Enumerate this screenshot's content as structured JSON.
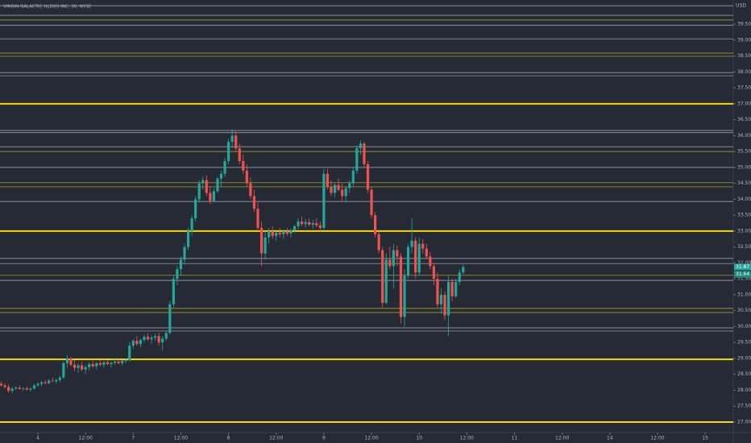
{
  "chart_data": {
    "type": "candlestick",
    "title": "VIRGIN GALACTIC HLDGS INC, 30, NYSE",
    "currency": "USD",
    "up_color": "#26a69a",
    "down_color": "#ef5350",
    "ylim": [
      26.67,
      40.26
    ],
    "yticks": [
      {
        "value": 27,
        "label": "27.00"
      },
      {
        "value": 27.5,
        "label": "27.50"
      },
      {
        "value": 28,
        "label": "28.00"
      },
      {
        "value": 28.5,
        "label": "28.50"
      },
      {
        "value": 29,
        "label": "29.00"
      },
      {
        "value": 29.5,
        "label": "29.50"
      },
      {
        "value": 30,
        "label": "30.00"
      },
      {
        "value": 30.5,
        "label": "30.50"
      },
      {
        "value": 31,
        "label": "31.00"
      },
      {
        "value": 31.5,
        "label": "31.50"
      },
      {
        "value": 32,
        "label": "32.00"
      },
      {
        "value": 32.5,
        "label": "32.50"
      },
      {
        "value": 33,
        "label": "33.00"
      },
      {
        "value": 33.5,
        "label": "33.50"
      },
      {
        "value": 34,
        "label": "34.00"
      },
      {
        "value": 34.5,
        "label": "34.50"
      },
      {
        "value": 35,
        "label": "35.00"
      },
      {
        "value": 35.5,
        "label": "35.50"
      },
      {
        "value": 36,
        "label": "36.00"
      },
      {
        "value": 36.5,
        "label": "36.50"
      },
      {
        "value": 37,
        "label": "37.00"
      },
      {
        "value": 37.5,
        "label": "37.50"
      },
      {
        "value": 38,
        "label": "38.00"
      },
      {
        "value": 38.5,
        "label": "38.50"
      },
      {
        "value": 39,
        "label": "39.00"
      },
      {
        "value": 39.5,
        "label": "39.50"
      }
    ],
    "xlim": [
      -0.33,
      199.67
    ],
    "xticks": [
      {
        "value": 10,
        "label": "4"
      },
      {
        "value": 23,
        "label": "12:00"
      },
      {
        "value": 36,
        "label": "7"
      },
      {
        "value": 49,
        "label": "12:00"
      },
      {
        "value": 62,
        "label": "8"
      },
      {
        "value": 75,
        "label": "12:00"
      },
      {
        "value": 88,
        "label": "9"
      },
      {
        "value": 101,
        "label": "12:00"
      },
      {
        "value": 114,
        "label": "10"
      },
      {
        "value": 127,
        "label": "12:00"
      },
      {
        "value": 140,
        "label": "11"
      },
      {
        "value": 153,
        "label": "12:00"
      },
      {
        "value": 166,
        "label": "14"
      },
      {
        "value": 179,
        "label": "12:00"
      },
      {
        "value": 192,
        "label": "15"
      }
    ],
    "levels": [
      {
        "value": 40.08,
        "color": "#d1d4dc",
        "style": "thin"
      },
      {
        "value": 39.78,
        "color": "#d1d4dc",
        "style": "thin"
      },
      {
        "value": 39.63,
        "color": "#e6d22e",
        "style": "thin"
      },
      {
        "value": 39.47,
        "color": "#d1d4dc",
        "style": "thin"
      },
      {
        "value": 39.04,
        "color": "#d1d4dc",
        "style": "thin"
      },
      {
        "value": 38.59,
        "color": "#e6d22e",
        "style": "thin"
      },
      {
        "value": 38.49,
        "color": "#e6d22e",
        "style": "thin"
      },
      {
        "value": 37.98,
        "color": "#d1d4dc",
        "style": "thin"
      },
      {
        "value": 37.88,
        "color": "#d1d4dc",
        "style": "thin"
      },
      {
        "value": 37.0,
        "color": "#f5d90a",
        "style": "thick"
      },
      {
        "value": 36.16,
        "color": "#d1d4dc",
        "style": "thin"
      },
      {
        "value": 36.09,
        "color": "#d1d4dc",
        "style": "thin"
      },
      {
        "value": 35.65,
        "color": "#d1d4dc",
        "style": "thin"
      },
      {
        "value": 35.5,
        "color": "#e6d22e",
        "style": "thin"
      },
      {
        "value": 35.0,
        "color": "#d1d4dc",
        "style": "thin"
      },
      {
        "value": 34.52,
        "color": "#e6d22e",
        "style": "thin"
      },
      {
        "value": 34.39,
        "color": "#e6d22e",
        "style": "thin"
      },
      {
        "value": 33.93,
        "color": "#d1d4dc",
        "style": "thin"
      },
      {
        "value": 33.0,
        "color": "#f5d90a",
        "style": "thick"
      },
      {
        "value": 32.14,
        "color": "#d1d4dc",
        "style": "thin"
      },
      {
        "value": 31.98,
        "color": "#d1d4dc",
        "style": "thin"
      },
      {
        "value": 31.61,
        "color": "#e6d22e",
        "style": "thin"
      },
      {
        "value": 31.45,
        "color": "#d1d4dc",
        "style": "thin"
      },
      {
        "value": 30.57,
        "color": "#e6d22e",
        "style": "thin"
      },
      {
        "value": 30.44,
        "color": "#e6d22e",
        "style": "thin"
      },
      {
        "value": 29.96,
        "color": "#d1d4dc",
        "style": "thin"
      },
      {
        "value": 29.86,
        "color": "#d1d4dc",
        "style": "thin"
      },
      {
        "value": 28.97,
        "color": "#f5d90a",
        "style": "thick"
      },
      {
        "value": 27.0,
        "color": "#f5d90a",
        "style": "thick"
      }
    ],
    "price_labels": [
      {
        "value": 31.87,
        "color": "#26a69a"
      },
      {
        "value": 31.64,
        "color": "#1f8a7f"
      }
    ],
    "candles": [
      [
        28.2,
        28.28,
        28.12,
        28.15
      ],
      [
        28.15,
        28.22,
        28.05,
        28.1
      ],
      [
        28.1,
        28.18,
        27.92,
        27.98
      ],
      [
        27.98,
        28.1,
        27.9,
        28.05
      ],
      [
        28.05,
        28.12,
        28.0,
        28.08
      ],
      [
        28.08,
        28.15,
        28.02,
        28.04
      ],
      [
        28.04,
        28.1,
        27.98,
        28.06
      ],
      [
        28.06,
        28.12,
        28.0,
        28.02
      ],
      [
        28.02,
        28.08,
        27.96,
        28.05
      ],
      [
        28.05,
        28.2,
        28.02,
        28.15
      ],
      [
        28.15,
        28.25,
        28.1,
        28.2
      ],
      [
        28.2,
        28.3,
        28.12,
        28.25
      ],
      [
        28.25,
        28.32,
        28.18,
        28.22
      ],
      [
        28.22,
        28.35,
        28.18,
        28.3
      ],
      [
        28.3,
        28.4,
        28.25,
        28.28
      ],
      [
        28.28,
        28.36,
        28.2,
        28.32
      ],
      [
        28.32,
        28.45,
        28.25,
        28.4
      ],
      [
        28.4,
        28.9,
        28.35,
        28.85
      ],
      [
        28.85,
        29.1,
        28.7,
        29.0
      ],
      [
        29.0,
        29.05,
        28.75,
        28.8
      ],
      [
        28.8,
        28.95,
        28.6,
        28.7
      ],
      [
        28.7,
        28.85,
        28.55,
        28.78
      ],
      [
        28.78,
        28.9,
        28.6,
        28.65
      ],
      [
        28.65,
        28.8,
        28.5,
        28.72
      ],
      [
        28.72,
        28.88,
        28.62,
        28.82
      ],
      [
        28.82,
        28.92,
        28.7,
        28.75
      ],
      [
        28.75,
        28.88,
        28.65,
        28.85
      ],
      [
        28.85,
        28.95,
        28.75,
        28.8
      ],
      [
        28.8,
        28.92,
        28.7,
        28.88
      ],
      [
        28.88,
        28.95,
        28.78,
        28.82
      ],
      [
        28.82,
        28.9,
        28.72,
        28.86
      ],
      [
        28.86,
        28.98,
        28.8,
        28.9
      ],
      [
        28.9,
        28.98,
        28.82,
        28.85
      ],
      [
        28.85,
        28.95,
        28.78,
        28.92
      ],
      [
        28.92,
        29.0,
        28.85,
        28.95
      ],
      [
        28.95,
        29.5,
        28.9,
        29.4
      ],
      [
        29.4,
        29.6,
        29.3,
        29.55
      ],
      [
        29.55,
        29.7,
        29.4,
        29.45
      ],
      [
        29.45,
        29.62,
        29.35,
        29.58
      ],
      [
        29.58,
        29.75,
        29.5,
        29.68
      ],
      [
        29.68,
        29.8,
        29.55,
        29.6
      ],
      [
        29.6,
        29.72,
        29.45,
        29.65
      ],
      [
        29.65,
        29.78,
        29.55,
        29.7
      ],
      [
        29.7,
        29.8,
        29.4,
        29.5
      ],
      [
        29.5,
        29.7,
        29.25,
        29.62
      ],
      [
        29.62,
        29.85,
        29.55,
        29.8
      ],
      [
        29.8,
        30.8,
        29.75,
        30.7
      ],
      [
        30.7,
        31.6,
        30.6,
        31.5
      ],
      [
        31.5,
        31.9,
        31.3,
        31.8
      ],
      [
        31.8,
        32.2,
        31.6,
        32.1
      ],
      [
        32.1,
        32.6,
        31.95,
        32.5
      ],
      [
        32.5,
        33.1,
        32.4,
        33.0
      ],
      [
        33.0,
        33.5,
        32.85,
        33.4
      ],
      [
        33.4,
        34.1,
        33.3,
        34.0
      ],
      [
        34.0,
        34.6,
        33.9,
        34.5
      ],
      [
        34.5,
        34.7,
        34.3,
        34.6
      ],
      [
        34.6,
        34.75,
        34.1,
        34.2
      ],
      [
        34.2,
        34.4,
        33.85,
        33.95
      ],
      [
        33.95,
        34.35,
        33.9,
        34.25
      ],
      [
        34.25,
        34.7,
        34.2,
        34.65
      ],
      [
        34.65,
        34.9,
        34.4,
        34.8
      ],
      [
        34.8,
        35.3,
        34.7,
        35.2
      ],
      [
        35.2,
        35.9,
        35.1,
        35.8
      ],
      [
        35.8,
        36.2,
        35.6,
        36.0
      ],
      [
        36.0,
        36.15,
        35.5,
        35.6
      ],
      [
        35.6,
        35.75,
        35.1,
        35.2
      ],
      [
        35.2,
        35.4,
        34.8,
        34.9
      ],
      [
        34.9,
        35.1,
        34.4,
        34.5
      ],
      [
        34.5,
        34.7,
        34.0,
        34.1
      ],
      [
        34.1,
        34.3,
        33.6,
        33.7
      ],
      [
        33.7,
        33.9,
        33.0,
        33.1
      ],
      [
        33.1,
        33.3,
        31.9,
        32.3
      ],
      [
        32.3,
        33.0,
        32.1,
        32.8
      ],
      [
        32.8,
        33.1,
        32.6,
        33.0
      ],
      [
        33.0,
        33.15,
        32.75,
        32.85
      ],
      [
        32.85,
        33.05,
        32.7,
        32.95
      ],
      [
        32.95,
        33.1,
        32.8,
        32.9
      ],
      [
        32.9,
        33.05,
        32.75,
        33.0
      ],
      [
        33.0,
        33.1,
        32.85,
        32.92
      ],
      [
        32.92,
        33.08,
        32.8,
        33.02
      ],
      [
        33.02,
        33.2,
        32.95,
        33.15
      ],
      [
        33.15,
        33.4,
        33.05,
        33.3
      ],
      [
        33.3,
        33.45,
        33.15,
        33.22
      ],
      [
        33.22,
        33.38,
        33.1,
        33.28
      ],
      [
        33.28,
        33.4,
        33.15,
        33.2
      ],
      [
        33.2,
        33.35,
        33.08,
        33.25
      ],
      [
        33.25,
        33.4,
        33.12,
        33.18
      ],
      [
        33.18,
        33.3,
        33.0,
        33.1
      ],
      [
        33.1,
        34.95,
        33.05,
        34.8
      ],
      [
        34.8,
        34.95,
        34.3,
        34.4
      ],
      [
        34.4,
        34.6,
        34.1,
        34.2
      ],
      [
        34.2,
        34.5,
        34.05,
        34.45
      ],
      [
        34.45,
        34.65,
        34.25,
        34.3
      ],
      [
        34.3,
        34.5,
        33.95,
        34.1
      ],
      [
        34.1,
        34.4,
        33.9,
        34.35
      ],
      [
        34.35,
        34.6,
        34.2,
        34.5
      ],
      [
        34.5,
        35.0,
        34.4,
        34.9
      ],
      [
        34.9,
        35.7,
        34.8,
        35.6
      ],
      [
        35.6,
        35.85,
        35.4,
        35.75
      ],
      [
        35.75,
        35.8,
        35.0,
        35.1
      ],
      [
        35.1,
        35.2,
        34.2,
        34.3
      ],
      [
        34.3,
        34.4,
        33.4,
        33.5
      ],
      [
        33.5,
        33.6,
        32.8,
        32.9
      ],
      [
        32.9,
        33.0,
        32.3,
        32.4
      ],
      [
        32.4,
        32.5,
        30.6,
        30.75
      ],
      [
        30.75,
        32.3,
        30.7,
        32.1
      ],
      [
        32.1,
        32.5,
        31.8,
        31.9
      ],
      [
        31.9,
        32.6,
        31.2,
        32.4
      ],
      [
        32.4,
        32.55,
        31.9,
        32.2
      ],
      [
        32.2,
        32.3,
        30.1,
        30.3
      ],
      [
        30.3,
        31.8,
        30.0,
        31.6
      ],
      [
        31.6,
        32.6,
        31.5,
        32.5
      ],
      [
        32.5,
        33.4,
        32.3,
        32.7
      ],
      [
        32.7,
        32.8,
        31.5,
        31.7
      ],
      [
        31.7,
        32.8,
        31.6,
        32.6
      ],
      [
        32.6,
        32.75,
        32.3,
        32.45
      ],
      [
        32.45,
        32.6,
        32.1,
        32.2
      ],
      [
        32.2,
        32.35,
        31.8,
        31.9
      ],
      [
        31.9,
        32.0,
        31.3,
        31.5
      ],
      [
        31.5,
        31.7,
        30.6,
        30.7
      ],
      [
        30.7,
        31.2,
        30.4,
        31.0
      ],
      [
        31.0,
        31.1,
        30.2,
        30.35
      ],
      [
        30.35,
        31.6,
        29.7,
        31.4
      ],
      [
        31.4,
        31.5,
        30.8,
        30.95
      ],
      [
        30.95,
        31.5,
        30.9,
        31.4
      ],
      [
        31.4,
        31.8,
        31.3,
        31.7
      ],
      [
        31.7,
        31.95,
        31.65,
        31.87
      ]
    ]
  }
}
